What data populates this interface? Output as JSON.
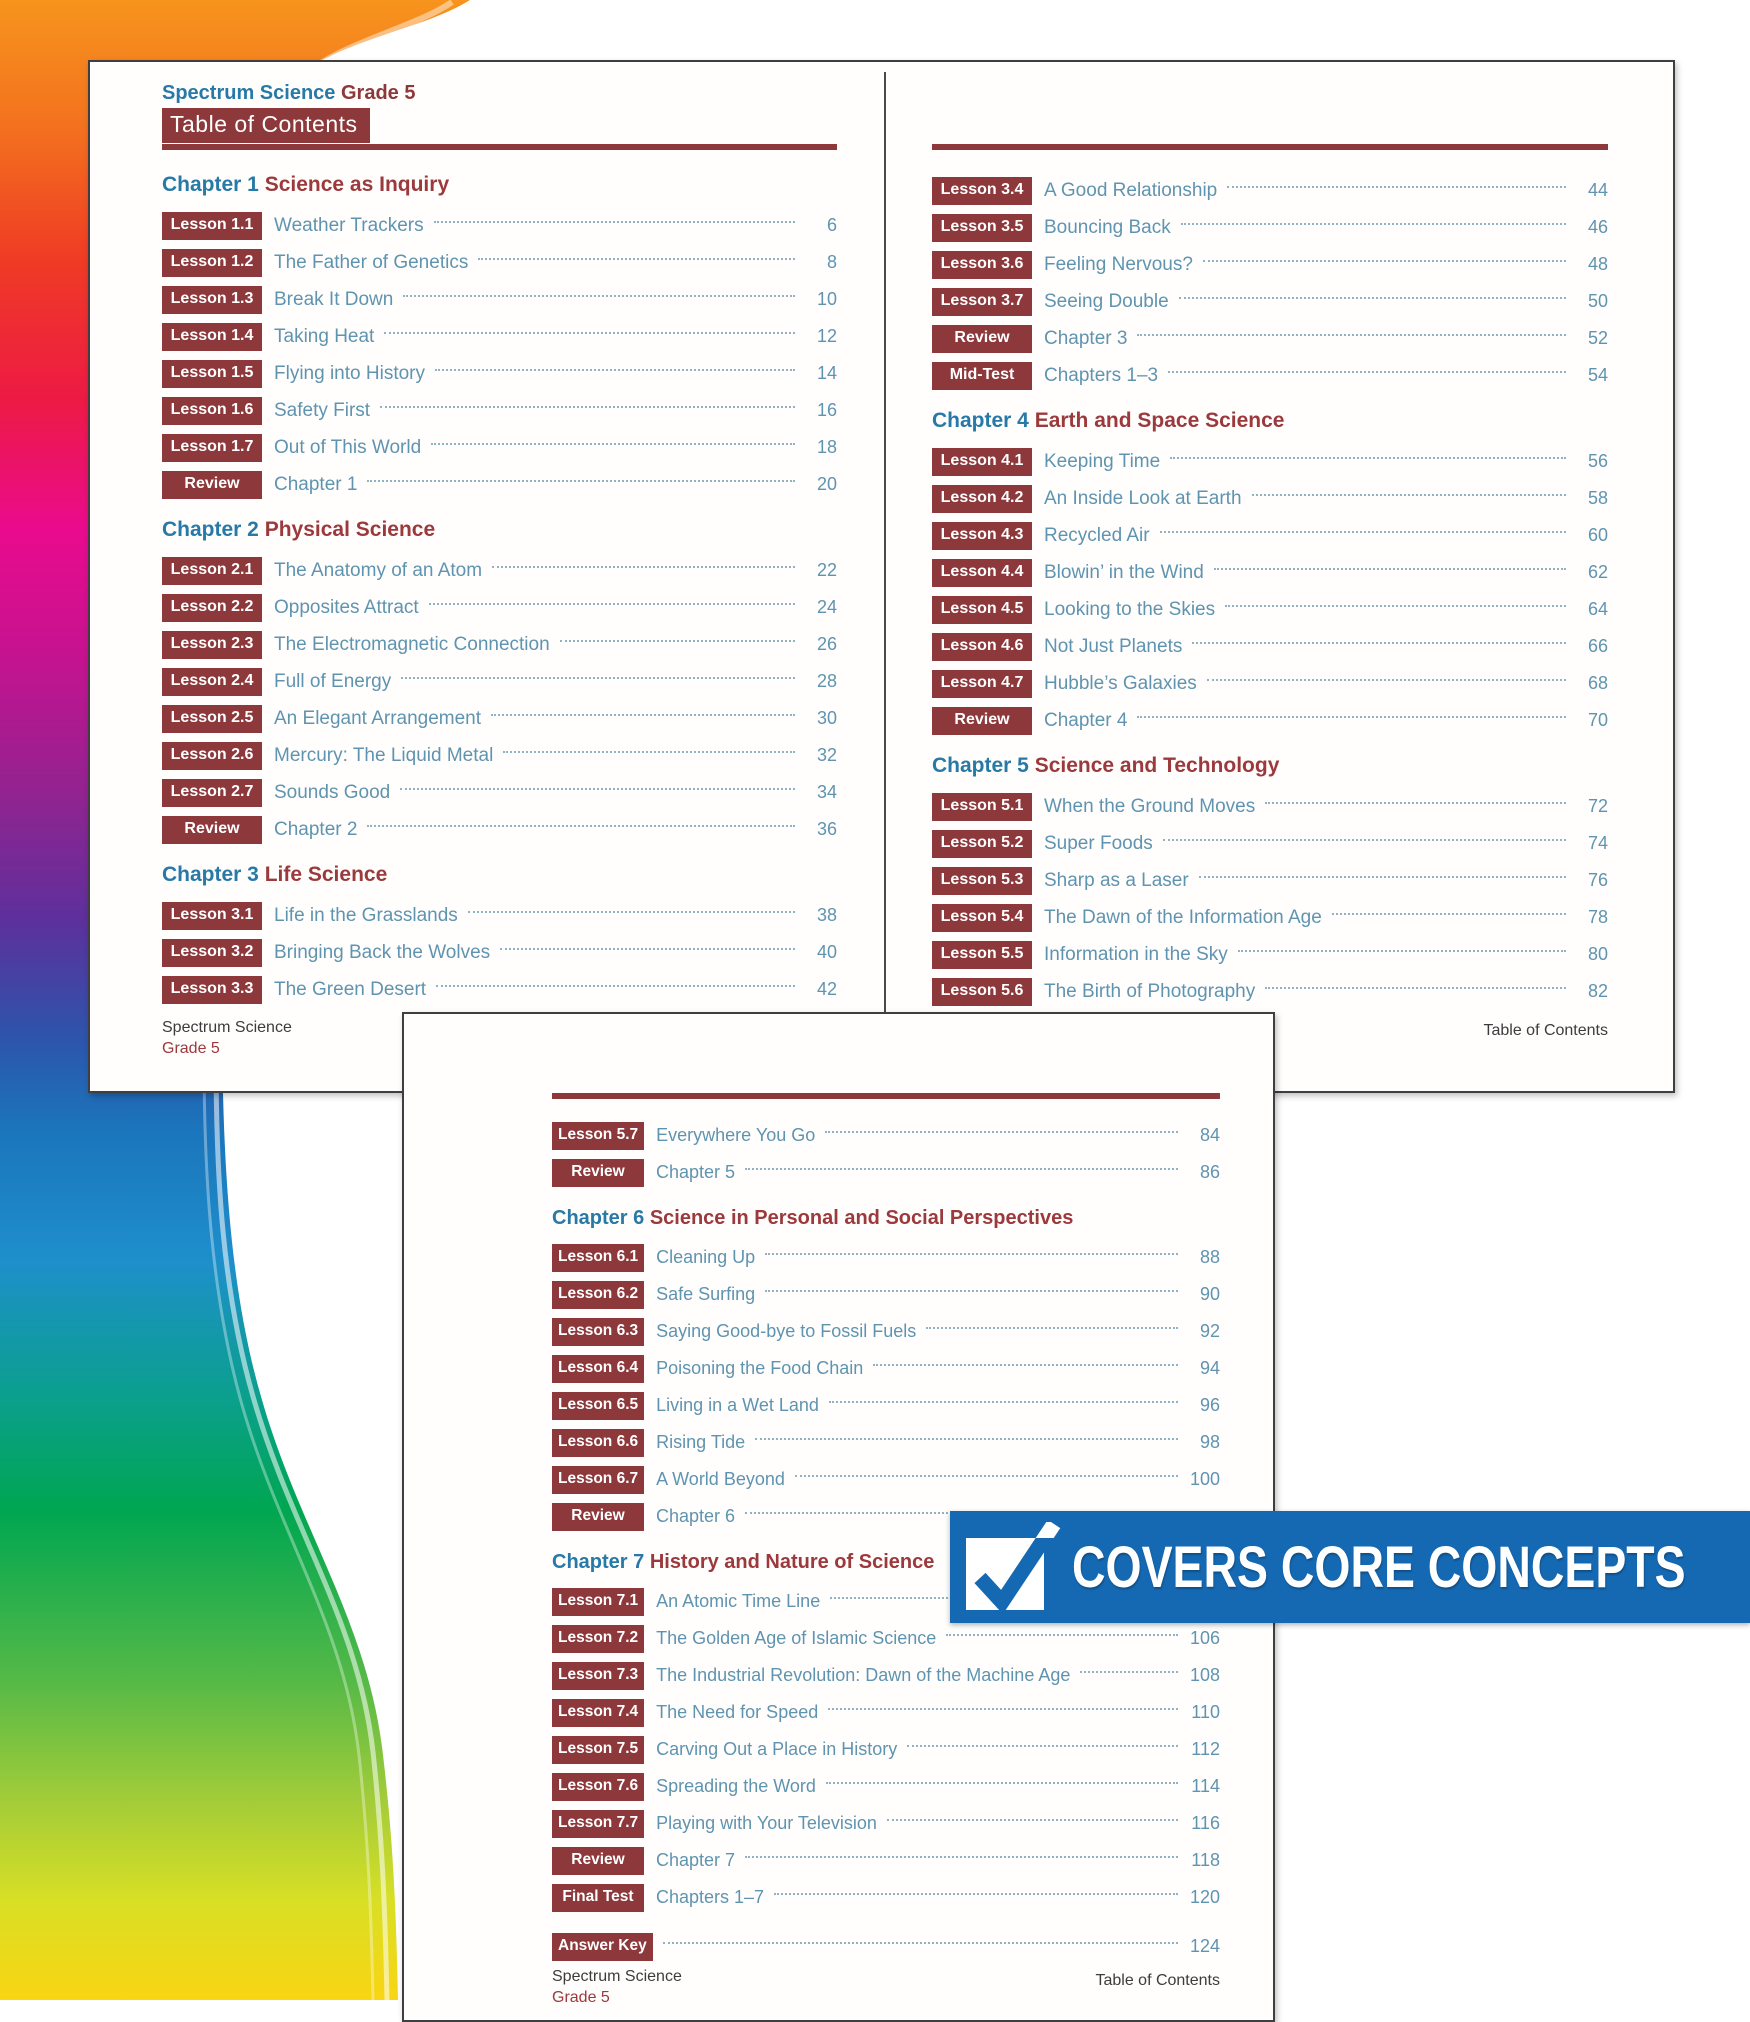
{
  "colors": {
    "maroon": "#8d383b",
    "chapter_blue": "#2779a7",
    "entry_blue": "#5f94b0",
    "banner_blue": "#1569b3",
    "swoosh_stops": [
      "#F7941D",
      "#EF3B24",
      "#E90B8D",
      "#8F2490",
      "#2C55AB",
      "#1B75BC",
      "#00A651",
      "#A2CC39",
      "#F9D513"
    ]
  },
  "banner": {
    "label": "COVERS CORE CONCEPTS",
    "icon": "checkbox-checkmark"
  },
  "page1": {
    "brand": "Spectrum Science",
    "grade": "Grade 5",
    "toc_title": "Table of Contents",
    "footer": {
      "line1": "Spectrum Science",
      "line2": "Grade 5",
      "right": "Table of Contents"
    },
    "columns": [
      [
        {
          "chapter": "Chapter 1",
          "title": "Science as Inquiry",
          "rows": [
            {
              "badge": "Lesson 1.1",
              "title": "Weather Trackers",
              "page": "6"
            },
            {
              "badge": "Lesson 1.2",
              "title": "The Father of Genetics",
              "page": "8"
            },
            {
              "badge": "Lesson 1.3",
              "title": "Break It Down",
              "page": "10"
            },
            {
              "badge": "Lesson 1.4",
              "title": "Taking Heat",
              "page": "12"
            },
            {
              "badge": "Lesson 1.5",
              "title": "Flying into History",
              "page": "14"
            },
            {
              "badge": "Lesson 1.6",
              "title": "Safety First",
              "page": "16"
            },
            {
              "badge": "Lesson 1.7",
              "title": "Out of This World",
              "page": "18"
            },
            {
              "badge": "Review",
              "title": "Chapter 1",
              "page": "20"
            }
          ]
        },
        {
          "chapter": "Chapter 2",
          "title": "Physical Science",
          "rows": [
            {
              "badge": "Lesson 2.1",
              "title": "The Anatomy of an Atom",
              "page": "22"
            },
            {
              "badge": "Lesson 2.2",
              "title": "Opposites Attract",
              "page": "24"
            },
            {
              "badge": "Lesson 2.3",
              "title": "The Electromagnetic Connection",
              "page": "26"
            },
            {
              "badge": "Lesson 2.4",
              "title": "Full of Energy",
              "page": "28"
            },
            {
              "badge": "Lesson 2.5",
              "title": "An Elegant Arrangement",
              "page": "30"
            },
            {
              "badge": "Lesson 2.6",
              "title": "Mercury: The Liquid Metal",
              "page": "32"
            },
            {
              "badge": "Lesson 2.7",
              "title": "Sounds Good",
              "page": "34"
            },
            {
              "badge": "Review",
              "title": "Chapter 2",
              "page": "36"
            }
          ]
        },
        {
          "chapter": "Chapter 3",
          "title": "Life Science",
          "rows": [
            {
              "badge": "Lesson 3.1",
              "title": "Life in the Grasslands",
              "page": "38"
            },
            {
              "badge": "Lesson 3.2",
              "title": "Bringing Back the Wolves",
              "page": "40"
            },
            {
              "badge": "Lesson 3.3",
              "title": "The Green Desert",
              "page": "42"
            }
          ]
        }
      ],
      [
        {
          "chapter": "",
          "title": "",
          "rows": [
            {
              "badge": "Lesson 3.4",
              "title": "A Good Relationship",
              "page": "44"
            },
            {
              "badge": "Lesson 3.5",
              "title": "Bouncing Back",
              "page": "46"
            },
            {
              "badge": "Lesson 3.6",
              "title": "Feeling Nervous?",
              "page": "48"
            },
            {
              "badge": "Lesson 3.7",
              "title": "Seeing Double",
              "page": "50"
            },
            {
              "badge": "Review",
              "title": "Chapter 3",
              "page": "52"
            },
            {
              "badge": "Mid-Test",
              "title": "Chapters 1–3",
              "page": "54"
            }
          ]
        },
        {
          "chapter": "Chapter 4",
          "title": "Earth and Space Science",
          "rows": [
            {
              "badge": "Lesson 4.1",
              "title": "Keeping Time",
              "page": "56"
            },
            {
              "badge": "Lesson 4.2",
              "title": "An Inside Look at Earth",
              "page": "58"
            },
            {
              "badge": "Lesson 4.3",
              "title": "Recycled Air",
              "page": "60"
            },
            {
              "badge": "Lesson 4.4",
              "title": "Blowin’ in the Wind",
              "page": "62"
            },
            {
              "badge": "Lesson 4.5",
              "title": "Looking to the Skies",
              "page": "64"
            },
            {
              "badge": "Lesson 4.6",
              "title": "Not Just Planets",
              "page": "66"
            },
            {
              "badge": "Lesson 4.7",
              "title": "Hubble’s Galaxies",
              "page": "68"
            },
            {
              "badge": "Review",
              "title": "Chapter 4",
              "page": "70"
            }
          ]
        },
        {
          "chapter": "Chapter 5",
          "title": "Science and Technology",
          "rows": [
            {
              "badge": "Lesson 5.1",
              "title": "When the Ground Moves",
              "page": "72"
            },
            {
              "badge": "Lesson 5.2",
              "title": "Super Foods",
              "page": "74"
            },
            {
              "badge": "Lesson 5.3",
              "title": "Sharp as a Laser",
              "page": "76"
            },
            {
              "badge": "Lesson 5.4",
              "title": "The Dawn of the Information Age",
              "page": "78"
            },
            {
              "badge": "Lesson 5.5",
              "title": "Information in the Sky",
              "page": "80"
            },
            {
              "badge": "Lesson 5.6",
              "title": "The Birth of Photography",
              "page": "82"
            }
          ]
        }
      ]
    ]
  },
  "page2": {
    "footer": {
      "line1": "Spectrum Science",
      "line2": "Grade 5",
      "right": "Table of Contents"
    },
    "sections": [
      {
        "chapter": "",
        "title": "",
        "rows": [
          {
            "badge": "Lesson 5.7",
            "title": "Everywhere You Go",
            "page": "84"
          },
          {
            "badge": "Review",
            "title": "Chapter 5",
            "page": "86"
          }
        ]
      },
      {
        "chapter": "Chapter 6",
        "title": "Science in Personal and Social Perspectives",
        "rows": [
          {
            "badge": "Lesson 6.1",
            "title": "Cleaning Up",
            "page": "88"
          },
          {
            "badge": "Lesson 6.2",
            "title": "Safe Surfing",
            "page": "90"
          },
          {
            "badge": "Lesson 6.3",
            "title": "Saying Good-bye to Fossil Fuels",
            "page": "92"
          },
          {
            "badge": "Lesson 6.4",
            "title": "Poisoning the Food Chain",
            "page": "94"
          },
          {
            "badge": "Lesson 6.5",
            "title": "Living in a Wet Land",
            "page": "96"
          },
          {
            "badge": "Lesson 6.6",
            "title": "Rising Tide",
            "page": "98"
          },
          {
            "badge": "Lesson 6.7",
            "title": "A World Beyond",
            "page": "100"
          },
          {
            "badge": "Review",
            "title": "Chapter 6",
            "page": ""
          }
        ]
      },
      {
        "chapter": "Chapter 7",
        "title": "History and Nature of Science",
        "rows": [
          {
            "badge": "Lesson 7.1",
            "title": "An Atomic Time Line",
            "page": ""
          },
          {
            "badge": "Lesson 7.2",
            "title": "The Golden Age of Islamic Science",
            "page": "106"
          },
          {
            "badge": "Lesson 7.3",
            "title": "The Industrial Revolution: Dawn of the Machine Age",
            "page": "108"
          },
          {
            "badge": "Lesson 7.4",
            "title": "The Need for Speed",
            "page": "110"
          },
          {
            "badge": "Lesson 7.5",
            "title": "Carving Out a Place in History",
            "page": "112"
          },
          {
            "badge": "Lesson 7.6",
            "title": "Spreading the Word",
            "page": "114"
          },
          {
            "badge": "Lesson 7.7",
            "title": "Playing with Your Television",
            "page": "116"
          },
          {
            "badge": "Review",
            "title": "Chapter 7",
            "page": "118"
          },
          {
            "badge": "Final Test",
            "title": "Chapters 1–7",
            "page": "120"
          }
        ]
      },
      {
        "chapter": "",
        "title": "",
        "rows": [
          {
            "badge": "Answer Key",
            "title": "",
            "page": "124",
            "gap_before": true
          }
        ]
      }
    ]
  }
}
